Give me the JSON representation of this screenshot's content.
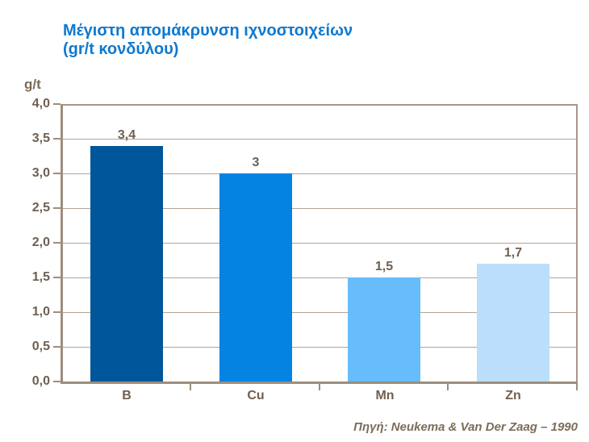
{
  "title": {
    "line1": "Μέγιστη απομάκρυνση ιχνοστοιχείων",
    "line2": "(gr/t κονδύλου)"
  },
  "source": "Πηγή: Neukema & Van Der Zaag – 1990",
  "colors": {
    "title_text": "#0e79d0",
    "axis_line": "#9d8e7e",
    "grid_line": "#b2a496",
    "frame_line": "#a59788",
    "label_text": "#6f6050",
    "source_text": "#7c6c59",
    "background": "#ffffff"
  },
  "chart_data": {
    "type": "bar",
    "title": "Μέγιστη απομάκρυνση ιχνοστοιχείων (gr/t κονδύλου)",
    "categories": [
      "B",
      "Cu",
      "Mn",
      "Zn"
    ],
    "values": [
      3.4,
      3,
      1.5,
      1.7
    ],
    "value_labels": [
      "3,4",
      "3",
      "1,5",
      "1,7"
    ],
    "bar_colors": [
      "#00569b",
      "#0583e2",
      "#67bcfc",
      "#badefb"
    ],
    "xlabel": "",
    "ylabel": "g/t",
    "ylim": [
      0,
      4
    ],
    "ytick_step": 0.5,
    "ytick_labels": [
      "0,0",
      "0,5",
      "1,0",
      "1,5",
      "2,0",
      "2,5",
      "3,0",
      "3,5",
      "4,0"
    ],
    "grid": true,
    "legend": false
  }
}
